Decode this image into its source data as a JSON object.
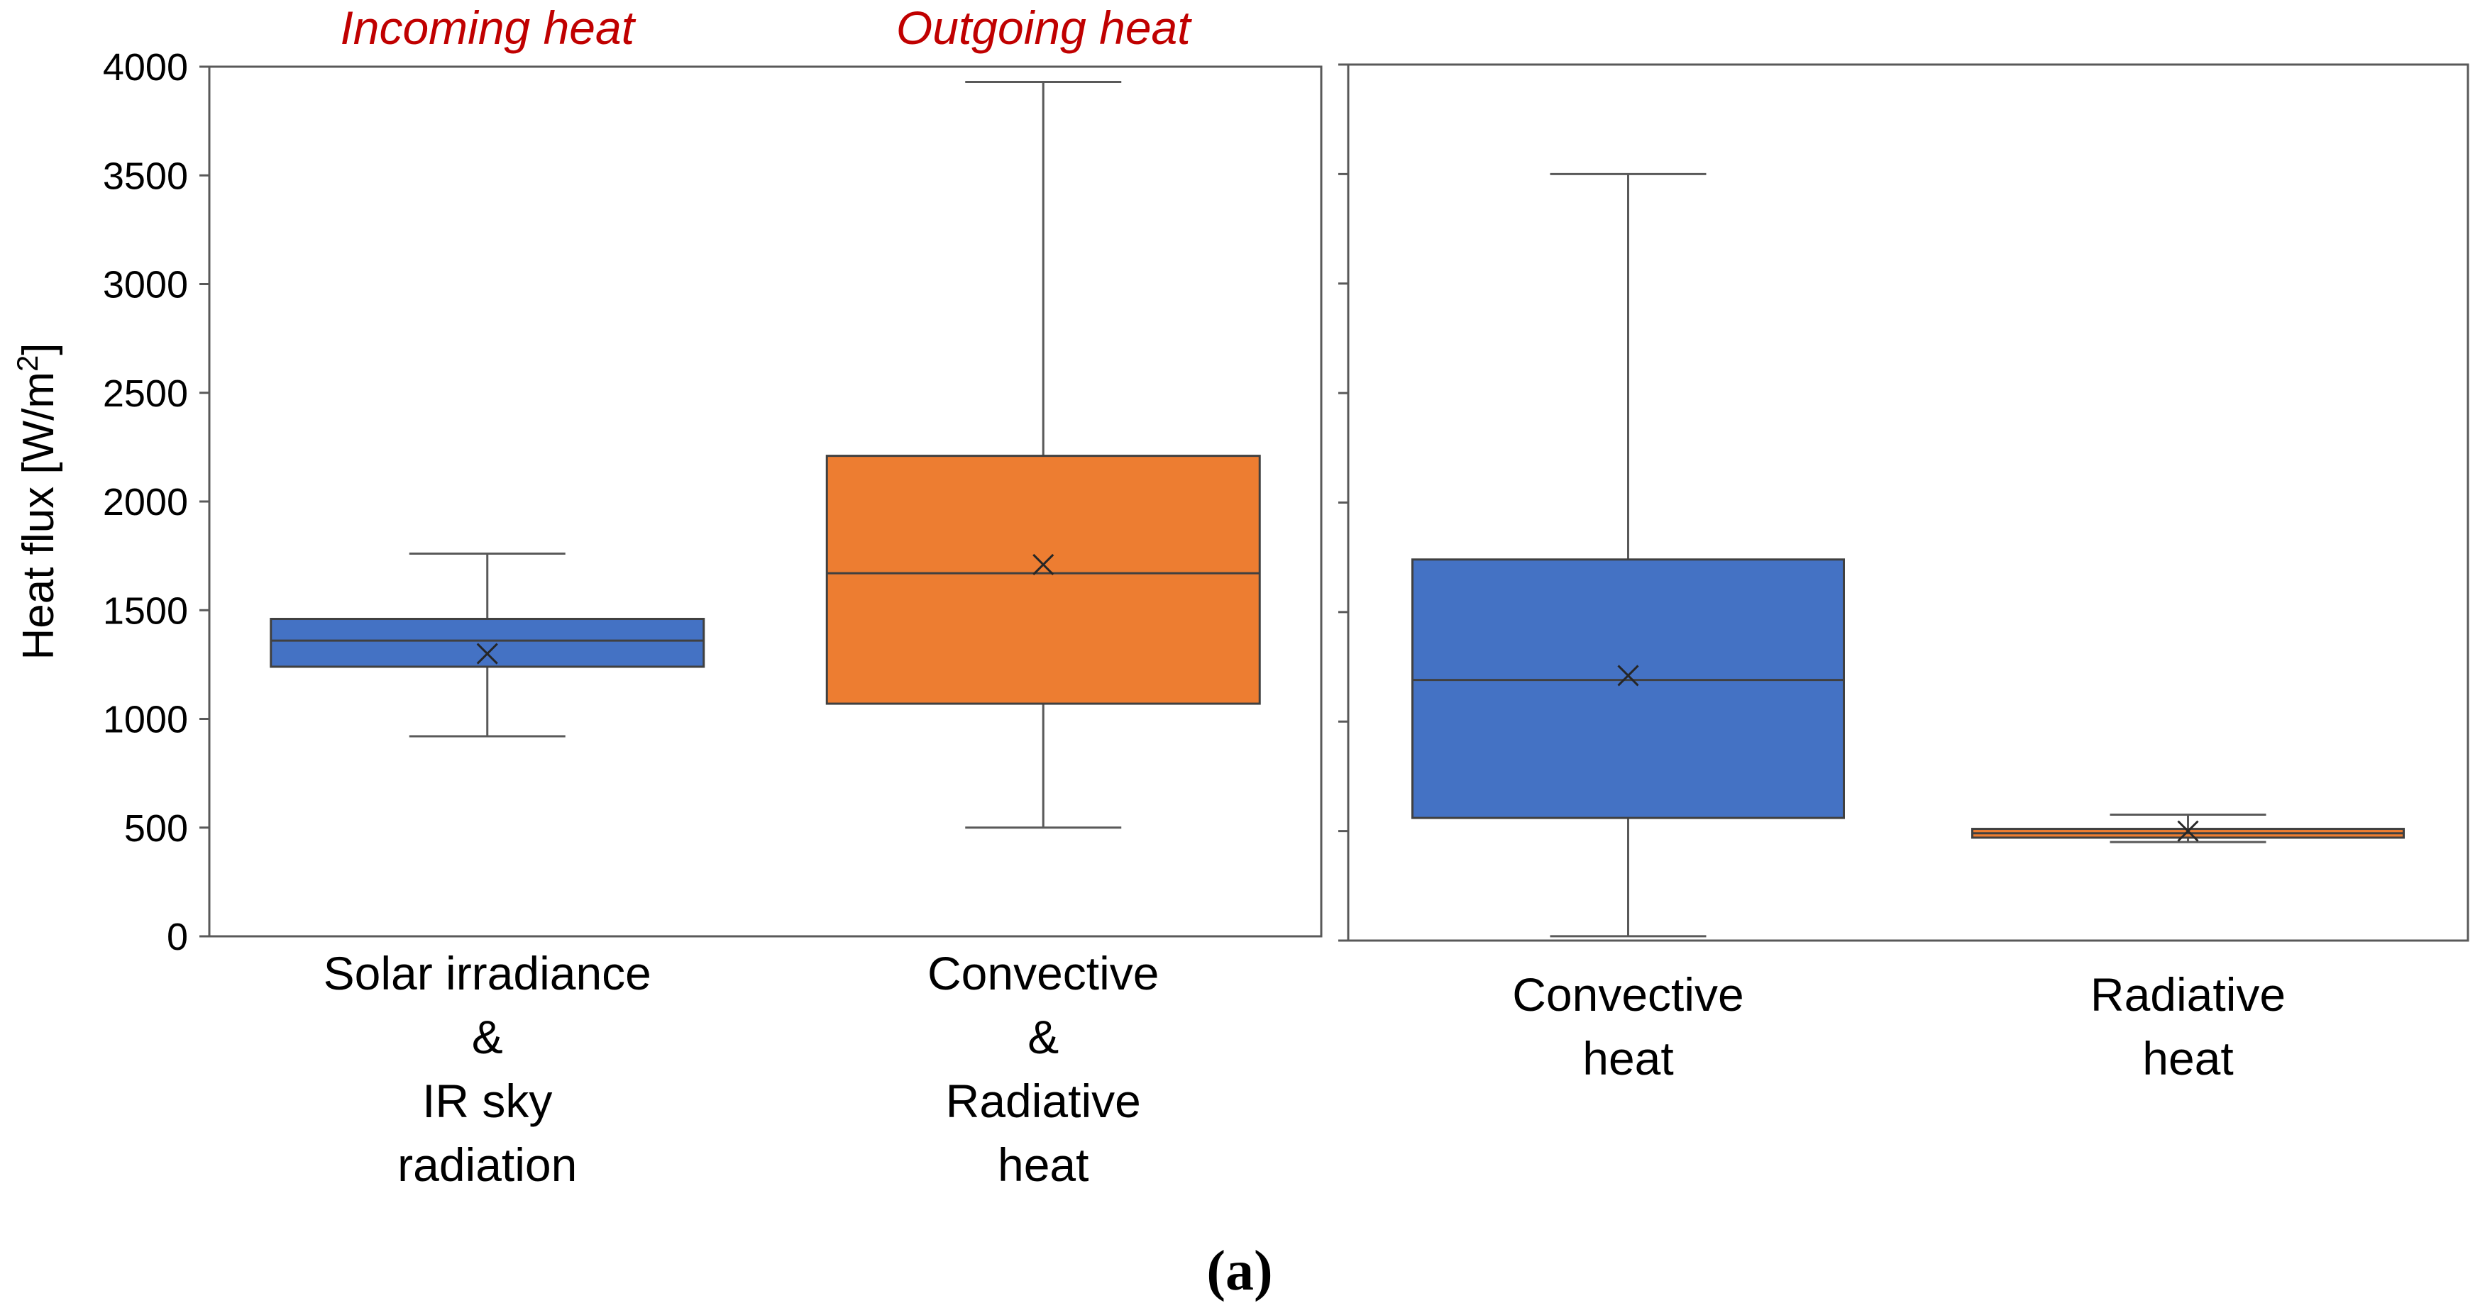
{
  "chart_data": [
    {
      "type": "box",
      "ylabel": "Heat flux [W/m",
      "ylabel_sup": "2",
      "ylabel_end": "]",
      "ylim": [
        0,
        4000
      ],
      "yticks": [
        0,
        500,
        1000,
        1500,
        2000,
        2500,
        3000,
        3500,
        4000
      ],
      "header_color": "#c00000",
      "boxes": [
        {
          "header": "Incoming heat",
          "label_lines": [
            "Solar irradiance",
            "&",
            "IR sky",
            "radiation"
          ],
          "min": 920,
          "q1": 1240,
          "median": 1360,
          "q3": 1460,
          "max": 1760,
          "mean": 1300,
          "color": "#4472c4"
        },
        {
          "header": "Outgoing heat",
          "label_lines": [
            "Convective",
            "&",
            "Radiative",
            "heat"
          ],
          "min": 500,
          "q1": 1070,
          "median": 1670,
          "q3": 2210,
          "max": 3930,
          "mean": 1710,
          "color": "#ed7d31"
        }
      ]
    },
    {
      "type": "box",
      "ylim": [
        0,
        4000
      ],
      "yticks": [
        0,
        500,
        1000,
        1500,
        2000,
        2500,
        3000,
        3500,
        4000
      ],
      "boxes": [
        {
          "label_lines": [
            "Convective",
            "heat"
          ],
          "min": 20,
          "q1": 560,
          "median": 1190,
          "q3": 1740,
          "max": 3500,
          "mean": 1210,
          "color": "#4472c4"
        },
        {
          "label_lines": [
            "Radiative",
            "heat"
          ],
          "min": 450,
          "q1": 470,
          "median": 490,
          "q3": 510,
          "max": 575,
          "mean": 500,
          "color": "#ed7d31"
        }
      ]
    }
  ],
  "caption": "(a)"
}
